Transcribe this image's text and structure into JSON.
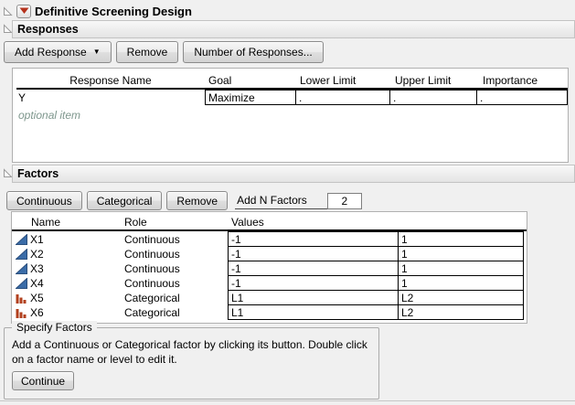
{
  "header": {
    "title": "Definitive Screening Design"
  },
  "responses": {
    "section_title": "Responses",
    "toolbar": {
      "add_response": "Add Response",
      "remove": "Remove",
      "number_of_responses": "Number of Responses..."
    },
    "table": {
      "columns": [
        "Response Name",
        "Goal",
        "Lower Limit",
        "Upper Limit",
        "Importance"
      ],
      "rows": [
        {
          "name": "Y",
          "goal": "Maximize",
          "lower_limit": ".",
          "upper_limit": ".",
          "importance": "."
        }
      ],
      "placeholder": "optional item"
    }
  },
  "factors": {
    "section_title": "Factors",
    "toolbar": {
      "continuous": "Continuous",
      "categorical": "Categorical",
      "remove": "Remove",
      "add_n_label": "Add N Factors",
      "add_n_value": "2"
    },
    "table": {
      "columns": [
        "Name",
        "Role",
        "Values"
      ],
      "rows": [
        {
          "name": "X1",
          "role": "Continuous",
          "icon": "continuous",
          "values": [
            "-1",
            "1"
          ]
        },
        {
          "name": "X2",
          "role": "Continuous",
          "icon": "continuous",
          "values": [
            "-1",
            "1"
          ]
        },
        {
          "name": "X3",
          "role": "Continuous",
          "icon": "continuous",
          "values": [
            "-1",
            "1"
          ]
        },
        {
          "name": "X4",
          "role": "Continuous",
          "icon": "continuous",
          "values": [
            "-1",
            "1"
          ]
        },
        {
          "name": "X5",
          "role": "Categorical",
          "icon": "categorical",
          "values": [
            "L1",
            "L2"
          ]
        },
        {
          "name": "X6",
          "role": "Categorical",
          "icon": "categorical",
          "values": [
            "L1",
            "L2"
          ]
        }
      ]
    }
  },
  "specify_factors": {
    "legend": "Specify Factors",
    "instructions": "Add a Continuous or Categorical factor by clicking its button. Double click on a factor name or level to edit it.",
    "continue_button": "Continue"
  },
  "colors": {
    "continuous_icon": "#3a6ca8",
    "continuous_icon_stroke": "#2b4f7d",
    "categorical_icon": "#b2401e",
    "red_triangle": "#b5321c",
    "optional_item_text": "#7e978d"
  },
  "icons": {
    "disclosure": "open-triangle-outline",
    "red_triangle_menu": "filled-down-triangle",
    "add_response_caret": "filled-down-triangle"
  }
}
